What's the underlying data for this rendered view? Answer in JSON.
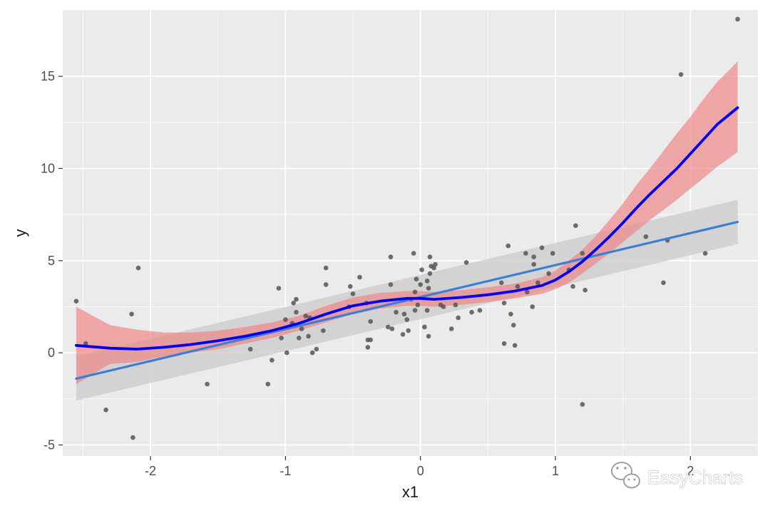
{
  "watermark": {
    "text": "EasyCharts",
    "icon": "wechat-icon"
  },
  "chart_data": {
    "type": "scatter",
    "title": "",
    "xlabel": "x1",
    "ylabel": "y",
    "xlim": [
      -2.65,
      2.5
    ],
    "ylim": [
      -5.6,
      18.6
    ],
    "xticks": [
      -2,
      -1,
      0,
      1,
      2
    ],
    "yticks": [
      -5,
      0,
      5,
      10,
      15
    ],
    "grid": true,
    "legend": "none",
    "colors": {
      "panel": "#ebebeb",
      "grid": "#ffffff",
      "points": "#555555",
      "linear_fit": "#3a7fd6",
      "linear_band": "#cfcfcf",
      "smooth_fit": "#0000ee",
      "smooth_band": "#f08080"
    },
    "points": [
      [
        -2.55,
        2.8
      ],
      [
        -2.48,
        0.5
      ],
      [
        -2.33,
        -3.1
      ],
      [
        -2.14,
        2.1
      ],
      [
        -2.13,
        -4.6
      ],
      [
        -2.09,
        4.6
      ],
      [
        -1.58,
        -1.7
      ],
      [
        -1.26,
        0.2
      ],
      [
        -1.13,
        -1.7
      ],
      [
        -1.1,
        -0.4
      ],
      [
        -1.05,
        3.5
      ],
      [
        -1.03,
        0.8
      ],
      [
        -1.0,
        1.8
      ],
      [
        -0.99,
        0.0
      ],
      [
        -0.95,
        1.6
      ],
      [
        -0.94,
        2.7
      ],
      [
        -0.92,
        2.9
      ],
      [
        -0.92,
        2.2
      ],
      [
        -0.9,
        0.8
      ],
      [
        -0.88,
        1.3
      ],
      [
        -0.85,
        2.0
      ],
      [
        -0.83,
        0.9
      ],
      [
        -0.82,
        1.9
      ],
      [
        -0.8,
        0.0
      ],
      [
        -0.77,
        0.2
      ],
      [
        -0.72,
        1.2
      ],
      [
        -0.7,
        3.7
      ],
      [
        -0.7,
        4.6
      ],
      [
        -0.53,
        2.5
      ],
      [
        -0.52,
        3.6
      ],
      [
        -0.5,
        3.2
      ],
      [
        -0.45,
        4.1
      ],
      [
        -0.4,
        2.7
      ],
      [
        -0.39,
        0.7
      ],
      [
        -0.39,
        0.3
      ],
      [
        -0.37,
        0.7
      ],
      [
        -0.37,
        1.7
      ],
      [
        -0.24,
        1.4
      ],
      [
        -0.22,
        5.2
      ],
      [
        -0.22,
        3.7
      ],
      [
        -0.21,
        1.3
      ],
      [
        -0.18,
        2.2
      ],
      [
        -0.13,
        1.0
      ],
      [
        -0.12,
        2.1
      ],
      [
        -0.1,
        1.8
      ],
      [
        -0.09,
        1.2
      ],
      [
        -0.07,
        2.9
      ],
      [
        -0.05,
        5.4
      ],
      [
        -0.04,
        3.3
      ],
      [
        -0.04,
        2.3
      ],
      [
        -0.03,
        4.0
      ],
      [
        -0.02,
        2.6
      ],
      [
        0.0,
        3.7
      ],
      [
        0.01,
        4.5
      ],
      [
        0.03,
        1.4
      ],
      [
        0.05,
        2.3
      ],
      [
        0.05,
        3.9
      ],
      [
        0.06,
        0.9
      ],
      [
        0.06,
        3.5
      ],
      [
        0.07,
        4.3
      ],
      [
        0.07,
        5.2
      ],
      [
        0.08,
        4.7
      ],
      [
        0.1,
        4.6
      ],
      [
        0.11,
        4.8
      ],
      [
        0.15,
        2.6
      ],
      [
        0.17,
        2.5
      ],
      [
        0.23,
        1.3
      ],
      [
        0.26,
        2.6
      ],
      [
        0.28,
        1.9
      ],
      [
        0.34,
        4.9
      ],
      [
        0.38,
        2.2
      ],
      [
        0.44,
        2.3
      ],
      [
        0.6,
        3.8
      ],
      [
        0.62,
        0.5
      ],
      [
        0.62,
        2.7
      ],
      [
        0.65,
        5.8
      ],
      [
        0.67,
        2.1
      ],
      [
        0.69,
        1.5
      ],
      [
        0.7,
        0.4
      ],
      [
        0.72,
        3.6
      ],
      [
        0.78,
        5.4
      ],
      [
        0.79,
        3.3
      ],
      [
        0.83,
        2.5
      ],
      [
        0.84,
        5.2
      ],
      [
        0.84,
        4.8
      ],
      [
        0.87,
        3.8
      ],
      [
        0.9,
        5.7
      ],
      [
        0.95,
        4.3
      ],
      [
        0.98,
        5.4
      ],
      [
        1.1,
        4.5
      ],
      [
        1.13,
        3.6
      ],
      [
        1.15,
        6.9
      ],
      [
        1.2,
        -2.8
      ],
      [
        1.2,
        5.4
      ],
      [
        1.22,
        3.4
      ],
      [
        1.67,
        6.3
      ],
      [
        1.8,
        3.8
      ],
      [
        1.83,
        6.1
      ],
      [
        1.93,
        15.1
      ],
      [
        2.11,
        5.4
      ],
      [
        2.35,
        18.1
      ]
    ],
    "series": [
      {
        "method": "linear",
        "x": [
          -2.55,
          2.35
        ],
        "fit": [
          -1.4,
          7.1
        ],
        "lower": [
          -2.6,
          5.9
        ],
        "upper": [
          -0.2,
          8.3
        ]
      },
      {
        "method": "smooth",
        "x": [
          -2.55,
          -2.3,
          -2.1,
          -1.9,
          -1.7,
          -1.5,
          -1.3,
          -1.1,
          -0.9,
          -0.7,
          -0.5,
          -0.3,
          -0.1,
          0.0,
          0.1,
          0.3,
          0.5,
          0.7,
          0.9,
          1.0,
          1.1,
          1.2,
          1.3,
          1.4,
          1.5,
          1.6,
          1.7,
          1.8,
          1.9,
          2.0,
          2.1,
          2.2,
          2.35
        ],
        "fit": [
          0.4,
          0.25,
          0.2,
          0.3,
          0.45,
          0.65,
          0.9,
          1.2,
          1.6,
          2.1,
          2.55,
          2.8,
          2.95,
          2.95,
          2.9,
          3.0,
          3.15,
          3.35,
          3.65,
          3.95,
          4.4,
          4.95,
          5.6,
          6.3,
          7.05,
          7.85,
          8.6,
          9.3,
          10.0,
          10.8,
          11.6,
          12.4,
          13.3
        ],
        "lower": [
          -1.7,
          -0.6,
          -0.5,
          -0.2,
          0.0,
          0.2,
          0.5,
          0.8,
          1.2,
          1.65,
          2.1,
          2.4,
          2.55,
          2.55,
          2.5,
          2.6,
          2.75,
          2.95,
          3.2,
          3.45,
          3.8,
          4.3,
          4.85,
          5.4,
          6.0,
          6.6,
          7.2,
          7.75,
          8.3,
          8.9,
          9.5,
          10.1,
          10.9
        ],
        "upper": [
          2.5,
          1.5,
          1.25,
          1.1,
          1.1,
          1.2,
          1.4,
          1.65,
          2.0,
          2.55,
          3.0,
          3.25,
          3.35,
          3.35,
          3.3,
          3.4,
          3.55,
          3.75,
          4.1,
          4.45,
          5.0,
          5.6,
          6.35,
          7.2,
          8.1,
          9.1,
          10.0,
          10.95,
          11.9,
          12.8,
          13.8,
          14.7,
          15.8
        ]
      }
    ]
  }
}
